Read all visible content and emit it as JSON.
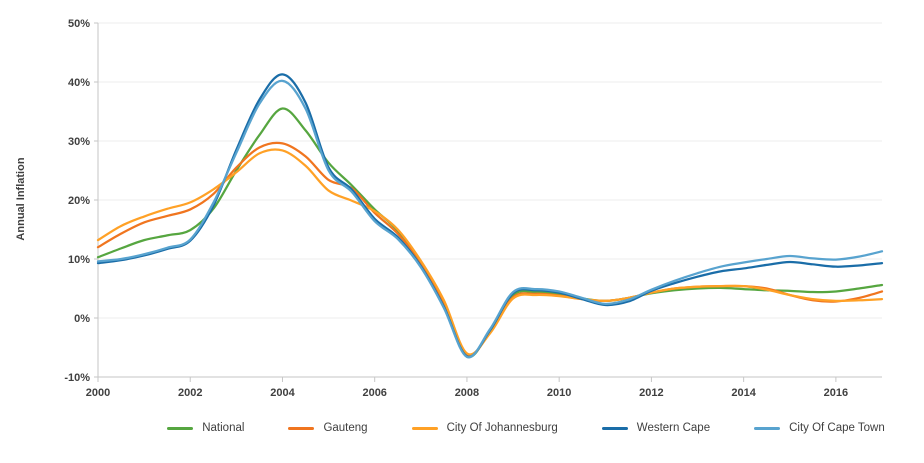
{
  "chart_data": {
    "type": "line",
    "title": "",
    "xlabel": "",
    "ylabel": "Annual Inflation",
    "xlim": [
      2000,
      2017
    ],
    "ylim": [
      -10,
      50
    ],
    "grid": true,
    "legend_position": "bottom",
    "y_ticks": [
      {
        "value": 50,
        "label": "50%"
      },
      {
        "value": 40,
        "label": "40%"
      },
      {
        "value": 30,
        "label": "30%"
      },
      {
        "value": 20,
        "label": "20%"
      },
      {
        "value": 10,
        "label": "10%"
      },
      {
        "value": 0,
        "label": "0%"
      },
      {
        "value": -10,
        "label": "-10%"
      }
    ],
    "x_ticks": [
      {
        "value": 2000,
        "label": "2000"
      },
      {
        "value": 2002,
        "label": "2002"
      },
      {
        "value": 2004,
        "label": "2004"
      },
      {
        "value": 2006,
        "label": "2006"
      },
      {
        "value": 2008,
        "label": "2008"
      },
      {
        "value": 2010,
        "label": "2010"
      },
      {
        "value": 2012,
        "label": "2012"
      },
      {
        "value": 2014,
        "label": "2014"
      },
      {
        "value": 2016,
        "label": "2016"
      }
    ],
    "x": [
      2000,
      2000.5,
      2001,
      2001.5,
      2002,
      2002.5,
      2003,
      2003.5,
      2004,
      2004.5,
      2005,
      2005.5,
      2006,
      2006.5,
      2007,
      2007.5,
      2008,
      2008.5,
      2009,
      2009.5,
      2010,
      2010.5,
      2011,
      2011.5,
      2012,
      2012.5,
      2013,
      2013.5,
      2014,
      2014.5,
      2015,
      2015.5,
      2016,
      2016.5,
      2017
    ],
    "series": [
      {
        "name": "National",
        "color": "#56A640",
        "values": [
          10.3,
          11.8,
          13.2,
          14.0,
          14.9,
          18.5,
          25.0,
          31.0,
          35.5,
          31.8,
          26.3,
          22.5,
          18.4,
          14.8,
          9.4,
          2.6,
          -6.5,
          -2.2,
          3.9,
          4.4,
          4.1,
          3.3,
          2.9,
          3.4,
          4.2,
          4.7,
          5.0,
          5.1,
          4.9,
          4.7,
          4.6,
          4.4,
          4.5,
          5.0,
          5.6
        ]
      },
      {
        "name": "Gauteng",
        "color": "#F0751F",
        "values": [
          12.0,
          14.3,
          16.2,
          17.3,
          18.4,
          21.0,
          25.5,
          28.9,
          29.6,
          27.4,
          23.4,
          22.0,
          17.8,
          14.3,
          9.2,
          2.4,
          -6.3,
          -2.4,
          3.5,
          4.1,
          3.8,
          3.2,
          2.9,
          3.4,
          4.3,
          5.0,
          5.3,
          5.4,
          5.4,
          5.0,
          3.9,
          3.0,
          2.8,
          3.4,
          4.5
        ]
      },
      {
        "name": "City Of Johannesburg",
        "color": "#FFA126",
        "values": [
          13.2,
          15.6,
          17.2,
          18.5,
          19.6,
          21.8,
          24.7,
          27.9,
          28.4,
          25.8,
          21.6,
          19.9,
          18.1,
          15.0,
          9.7,
          3.0,
          -6.0,
          -2.6,
          3.3,
          3.9,
          3.7,
          3.2,
          2.9,
          3.4,
          4.3,
          5.0,
          5.3,
          5.4,
          5.4,
          4.8,
          3.9,
          3.2,
          2.9,
          3.0,
          3.2
        ]
      },
      {
        "name": "Western Cape",
        "color": "#1A6DA8",
        "values": [
          9.3,
          9.8,
          10.6,
          11.7,
          13.1,
          19.0,
          28.5,
          37.0,
          41.3,
          36.5,
          25.5,
          21.8,
          16.8,
          13.7,
          8.8,
          1.9,
          -6.5,
          -2.1,
          4.2,
          4.7,
          4.3,
          3.2,
          2.2,
          2.8,
          4.6,
          5.9,
          7.0,
          7.9,
          8.4,
          9.0,
          9.5,
          9.1,
          8.7,
          8.9,
          9.3
        ]
      },
      {
        "name": "City Of Cape Town",
        "color": "#58A3CF",
        "values": [
          9.6,
          10.0,
          10.8,
          11.9,
          13.3,
          19.5,
          28.0,
          36.3,
          40.2,
          35.5,
          25.0,
          21.4,
          16.4,
          13.4,
          8.6,
          1.7,
          -6.6,
          -1.9,
          4.4,
          4.9,
          4.5,
          3.4,
          2.4,
          3.1,
          4.8,
          6.3,
          7.6,
          8.7,
          9.4,
          10.0,
          10.5,
          10.1,
          9.9,
          10.4,
          11.3
        ]
      }
    ],
    "colors": {
      "grid": "#EDEDED",
      "axis": "#C6C6C6",
      "tick_text": "#404040"
    }
  }
}
